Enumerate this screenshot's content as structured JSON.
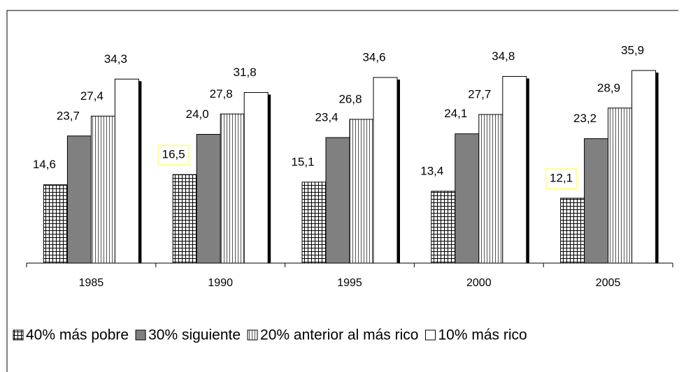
{
  "chart_data": {
    "type": "bar",
    "categories": [
      "1985",
      "1990",
      "1995",
      "2000",
      "2005"
    ],
    "series": [
      {
        "name": "40% más pobre",
        "color": "#ffffff",
        "pattern": "grid",
        "values": [
          14.6,
          16.5,
          15.1,
          13.4,
          12.1
        ],
        "value_labels": [
          "14,6",
          "16,5",
          "15,1",
          "13,4",
          "12,1"
        ]
      },
      {
        "name": "30% siguiente",
        "color": "#808080",
        "pattern": "solid",
        "values": [
          23.7,
          24.0,
          23.4,
          24.1,
          23.2
        ],
        "value_labels": [
          "23,7",
          "24,0",
          "23,4",
          "24,1",
          "23,2"
        ]
      },
      {
        "name": "20% anterior al más rico",
        "color": "#ffffff",
        "pattern": "vertical",
        "values": [
          27.4,
          27.8,
          26.8,
          27.7,
          28.9
        ],
        "value_labels": [
          "27,4",
          "27,8",
          "26,8",
          "27,7",
          "28,9"
        ]
      },
      {
        "name": "10% más rico",
        "color": "#ffffff",
        "pattern": "solid",
        "values": [
          34.3,
          31.8,
          34.6,
          34.8,
          35.9
        ],
        "value_labels": [
          "34,3",
          "31,8",
          "34,6",
          "34,8",
          "35,9"
        ]
      }
    ],
    "highlights": [
      {
        "series": 0,
        "index": 1
      },
      {
        "series": 0,
        "index": 4
      }
    ],
    "legend": "bottom"
  }
}
